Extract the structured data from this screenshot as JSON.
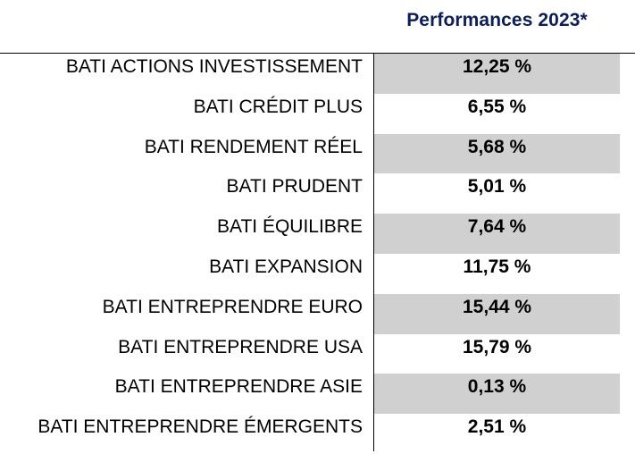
{
  "header": {
    "title": "Performances 2023*"
  },
  "colors": {
    "title": "#0b1f5c",
    "shaded_cell": "#d0d0d0",
    "rule": "#000000"
  },
  "rows": [
    {
      "fund": "BATI ACTIONS INVESTISSEMENT",
      "performance": "12,25 %"
    },
    {
      "fund": "BATI CRÉDIT PLUS",
      "performance": "6,55 %"
    },
    {
      "fund": "BATI RENDEMENT RÉEL",
      "performance": "5,68 %"
    },
    {
      "fund": "BATI PRUDENT",
      "performance": "5,01 %"
    },
    {
      "fund": "BATI ÉQUILIBRE",
      "performance": "7,64 %"
    },
    {
      "fund": "BATI EXPANSION",
      "performance": "11,75 %"
    },
    {
      "fund": "BATI ENTREPRENDRE EURO",
      "performance": "15,44 %"
    },
    {
      "fund": "BATI ENTREPRENDRE USA",
      "performance": "15,79 %"
    },
    {
      "fund": "BATI ENTREPRENDRE ASIE",
      "performance": "0,13 %"
    },
    {
      "fund": "BATI ENTREPRENDRE ÉMERGENTS",
      "performance": "2,51 %"
    }
  ]
}
